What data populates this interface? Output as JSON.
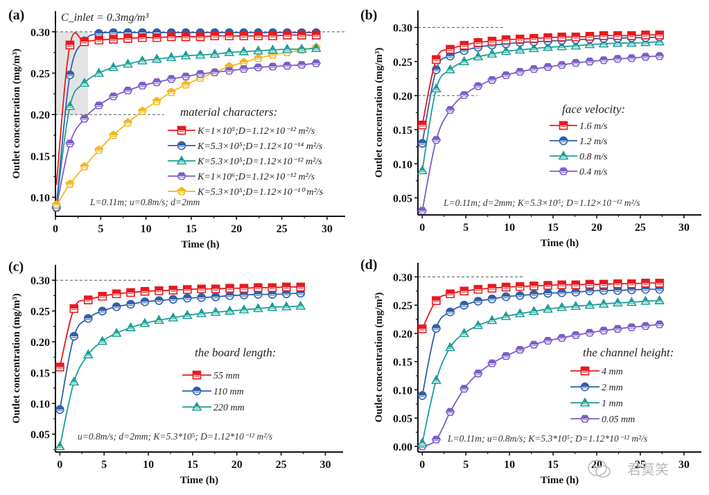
{
  "watermark": "君莫笑",
  "chart_data": [
    {
      "type": "line",
      "panel_label": "(a)",
      "xlabel": "Time (h)",
      "ylabel": "Outlet concentration (mg/m³)",
      "xlim": [
        0,
        32
      ],
      "ylim": [
        0.077,
        0.325
      ],
      "xticks": [
        0,
        5,
        10,
        15,
        20,
        25,
        30
      ],
      "yticks": [
        0.1,
        0.15,
        0.2,
        0.25,
        0.3
      ],
      "ytick_labels": [
        "0.10",
        "0.15",
        "0.20",
        "0.25",
        "0.30"
      ],
      "reference_lines": [
        {
          "y": 0.3,
          "x_range": [
            0,
            32
          ]
        },
        {
          "y": 0.2,
          "x_range": [
            0,
            12
          ]
        }
      ],
      "shaded_region": {
        "x_range": [
          0,
          3.6
        ],
        "y_range": [
          0.2,
          0.3
        ]
      },
      "top_annotation": "C_inlet = 0.3mg/m³",
      "annotation": "L=0.11m; u=0.8m/s; d=2mm",
      "legend_title": "material characters:",
      "legend_position": "center-right",
      "x": [
        0.1,
        1.6,
        3.2,
        4.8,
        6.4,
        8.0,
        9.6,
        11.2,
        12.8,
        14.4,
        16.0,
        17.6,
        19.2,
        20.8,
        22.4,
        24.0,
        25.6,
        27.2,
        28.8
      ],
      "series": [
        {
          "name": "K=1×10⁵;D=1.12×10⁻¹² m²/s",
          "color": "#e8191e",
          "marker": "square",
          "values": [
            0.115,
            0.284,
            0.288,
            0.29,
            0.291,
            0.292,
            0.293,
            0.293,
            0.294,
            0.294,
            0.294,
            0.295,
            0.295,
            0.295,
            0.295,
            0.295,
            0.296,
            0.296,
            0.296
          ]
        },
        {
          "name": "K=5.3×10⁵;D=1.12×10⁻¹⁴ m²/s",
          "color": "#2f5fa8",
          "marker": "circle",
          "values": [
            0.088,
            0.248,
            0.289,
            0.298,
            0.299,
            0.299,
            0.299,
            0.299,
            0.299,
            0.299,
            0.299,
            0.299,
            0.299,
            0.299,
            0.299,
            0.299,
            0.299,
            0.299,
            0.299
          ]
        },
        {
          "name": "K=5.3×10⁵;D=1.12×10⁻¹² m²/s",
          "color": "#1a9e96",
          "marker": "triangle",
          "values": [
            0.09,
            0.21,
            0.238,
            0.25,
            0.257,
            0.261,
            0.265,
            0.267,
            0.269,
            0.271,
            0.272,
            0.273,
            0.275,
            0.276,
            0.277,
            0.278,
            0.279,
            0.279,
            0.28
          ]
        },
        {
          "name": "K=1×10⁶;D=1.12×10⁻¹² m²/s",
          "color": "#7a5cc9",
          "marker": "diamond-circle",
          "values": [
            0.087,
            0.165,
            0.195,
            0.211,
            0.222,
            0.229,
            0.235,
            0.239,
            0.243,
            0.246,
            0.249,
            0.251,
            0.253,
            0.255,
            0.257,
            0.258,
            0.259,
            0.26,
            0.262
          ]
        },
        {
          "name": "K=5.3×10⁵;D=1.12×10⁻¹⁰ m²/s",
          "color": "#f5b71c",
          "marker": "pentagon",
          "values": [
            0.09,
            0.116,
            0.137,
            0.157,
            0.175,
            0.19,
            0.204,
            0.216,
            0.227,
            0.236,
            0.244,
            0.251,
            0.258,
            0.263,
            0.268,
            0.272,
            0.275,
            0.278,
            0.281
          ]
        }
      ]
    },
    {
      "type": "line",
      "panel_label": "(b)",
      "xlabel": "Time (h)",
      "ylabel": "Outlet concentration (mg/m³)",
      "xlim": [
        -0.5,
        32
      ],
      "ylim": [
        0.025,
        0.325
      ],
      "xticks": [
        0,
        5,
        10,
        15,
        20,
        25,
        30
      ],
      "yticks": [
        0.05,
        0.1,
        0.15,
        0.2,
        0.25,
        0.3
      ],
      "ytick_labels": [
        "0.05",
        "0.10",
        "0.15",
        "0.20",
        "0.25",
        "0.30"
      ],
      "reference_lines": [
        {
          "y": 0.3,
          "x_range": [
            -0.5,
            9.5
          ]
        },
        {
          "y": 0.2,
          "x_range": [
            -0.5,
            6.3
          ]
        }
      ],
      "annotation": "L=0.11m; d=2mm; K=5.3×10⁵; D=1.12×10⁻¹² m²/s",
      "legend_title": "face velocity:",
      "legend_position": "center-right",
      "x": [
        0,
        1.6,
        3.2,
        4.8,
        6.4,
        8.0,
        9.6,
        11.2,
        12.8,
        14.4,
        16.0,
        17.6,
        19.2,
        20.8,
        22.4,
        24.0,
        25.6,
        27.2
      ],
      "series": [
        {
          "name": "1.6 m/s",
          "color": "#e8191e",
          "marker": "square",
          "values": [
            0.157,
            0.253,
            0.268,
            0.274,
            0.278,
            0.28,
            0.282,
            0.283,
            0.284,
            0.285,
            0.286,
            0.286,
            0.287,
            0.288,
            0.288,
            0.288,
            0.289,
            0.289
          ]
        },
        {
          "name": "1.2 m/s",
          "color": "#2f5fa8",
          "marker": "circle",
          "values": [
            0.13,
            0.238,
            0.258,
            0.266,
            0.271,
            0.274,
            0.276,
            0.278,
            0.279,
            0.28,
            0.281,
            0.282,
            0.283,
            0.284,
            0.284,
            0.285,
            0.285,
            0.286
          ]
        },
        {
          "name": "0.8 m/s",
          "color": "#1a9e96",
          "marker": "triangle",
          "values": [
            0.09,
            0.21,
            0.238,
            0.25,
            0.257,
            0.261,
            0.265,
            0.267,
            0.269,
            0.271,
            0.272,
            0.273,
            0.275,
            0.276,
            0.277,
            0.277,
            0.278,
            0.279
          ]
        },
        {
          "name": "0.4 m/s",
          "color": "#7a5cc9",
          "marker": "diamond-circle",
          "values": [
            0.031,
            0.135,
            0.179,
            0.201,
            0.214,
            0.223,
            0.23,
            0.235,
            0.239,
            0.242,
            0.245,
            0.248,
            0.25,
            0.252,
            0.254,
            0.255,
            0.257,
            0.258
          ]
        }
      ]
    },
    {
      "type": "line",
      "panel_label": "(c)",
      "xlabel": "Time (h)",
      "ylabel": "Outlet concentration (mg/m³)",
      "xlim": [
        -0.5,
        32
      ],
      "ylim": [
        0.021,
        0.325
      ],
      "xticks": [
        0,
        5,
        10,
        15,
        20,
        25,
        30
      ],
      "yticks": [
        0.05,
        0.1,
        0.15,
        0.2,
        0.25,
        0.3
      ],
      "ytick_labels": [
        "0.05",
        "0.10",
        "0.15",
        "0.20",
        "0.25",
        "0.30"
      ],
      "reference_lines": [
        {
          "y": 0.3,
          "x_range": [
            -0.5,
            10.5
          ]
        }
      ],
      "annotation": "u=0.8m/s; d=2mm; K=5.3*10⁵; D=1.12*10⁻¹² m²/s",
      "legend_title": "the board length:",
      "legend_position": "center-right",
      "x": [
        0,
        1.6,
        3.2,
        4.8,
        6.4,
        8.0,
        9.6,
        11.2,
        12.8,
        14.4,
        16.0,
        17.6,
        19.2,
        20.8,
        22.4,
        24.0,
        25.6,
        27.2
      ],
      "series": [
        {
          "name": "55 mm",
          "color": "#e8191e",
          "marker": "square",
          "values": [
            0.159,
            0.254,
            0.268,
            0.274,
            0.278,
            0.28,
            0.282,
            0.283,
            0.284,
            0.285,
            0.286,
            0.286,
            0.287,
            0.287,
            0.288,
            0.288,
            0.289,
            0.289
          ]
        },
        {
          "name": "110 mm",
          "color": "#2f5fa8",
          "marker": "circle",
          "values": [
            0.09,
            0.209,
            0.238,
            0.25,
            0.257,
            0.261,
            0.265,
            0.267,
            0.269,
            0.271,
            0.272,
            0.273,
            0.275,
            0.276,
            0.277,
            0.277,
            0.278,
            0.279
          ]
        },
        {
          "name": "220 mm",
          "color": "#1a9e96",
          "marker": "triangle",
          "values": [
            0.03,
            0.135,
            0.179,
            0.201,
            0.214,
            0.223,
            0.23,
            0.235,
            0.239,
            0.243,
            0.246,
            0.248,
            0.25,
            0.252,
            0.254,
            0.256,
            0.257,
            0.258
          ]
        }
      ]
    },
    {
      "type": "line",
      "panel_label": "(d)",
      "xlabel": "Time (h)",
      "ylabel": "Outlet concentration (mg/m³)",
      "xlim": [
        -0.5,
        32
      ],
      "ylim": [
        -0.01,
        0.325
      ],
      "xticks": [
        0,
        5,
        10,
        15,
        20,
        25,
        30
      ],
      "yticks": [
        0.0,
        0.05,
        0.1,
        0.15,
        0.2,
        0.25,
        0.3
      ],
      "ytick_labels": [
        "0.00",
        "0.05",
        "0.10",
        "0.15",
        "0.20",
        "0.25",
        "0.30"
      ],
      "reference_lines": [
        {
          "y": 0.3,
          "x_range": [
            -0.5,
            11.7
          ]
        }
      ],
      "annotation": "L=0.11m; u=0.8m/s; K=5.3*10⁵; D=1.12*10⁻¹² m²/s",
      "legend_title": "the channel height:",
      "legend_position": "center-right",
      "x": [
        0,
        1.6,
        3.2,
        4.8,
        6.4,
        8.0,
        9.6,
        11.2,
        12.8,
        14.4,
        16.0,
        17.6,
        19.2,
        20.8,
        22.4,
        24.0,
        25.6,
        27.2
      ],
      "series": [
        {
          "name": "4 mm",
          "color": "#e8191e",
          "marker": "square",
          "values": [
            0.208,
            0.258,
            0.27,
            0.275,
            0.278,
            0.28,
            0.282,
            0.283,
            0.284,
            0.285,
            0.286,
            0.286,
            0.287,
            0.287,
            0.288,
            0.288,
            0.289,
            0.289
          ]
        },
        {
          "name": "2 mm",
          "color": "#2f5fa8",
          "marker": "circle",
          "values": [
            0.09,
            0.209,
            0.238,
            0.25,
            0.257,
            0.261,
            0.265,
            0.267,
            0.269,
            0.271,
            0.272,
            0.273,
            0.275,
            0.276,
            0.276,
            0.277,
            0.278,
            0.278
          ]
        },
        {
          "name": "1 mm",
          "color": "#1a9e96",
          "marker": "triangle",
          "values": [
            0.006,
            0.117,
            0.175,
            0.2,
            0.214,
            0.223,
            0.23,
            0.235,
            0.239,
            0.243,
            0.246,
            0.248,
            0.25,
            0.252,
            0.254,
            0.255,
            0.257,
            0.258
          ]
        },
        {
          "name": "0.05 mm",
          "color": "#7a5cc9",
          "marker": "diamond-circle",
          "values": [
            0.0,
            0.012,
            0.061,
            0.102,
            0.129,
            0.147,
            0.16,
            0.171,
            0.18,
            0.187,
            0.192,
            0.197,
            0.201,
            0.205,
            0.208,
            0.211,
            0.213,
            0.216
          ]
        }
      ]
    }
  ]
}
